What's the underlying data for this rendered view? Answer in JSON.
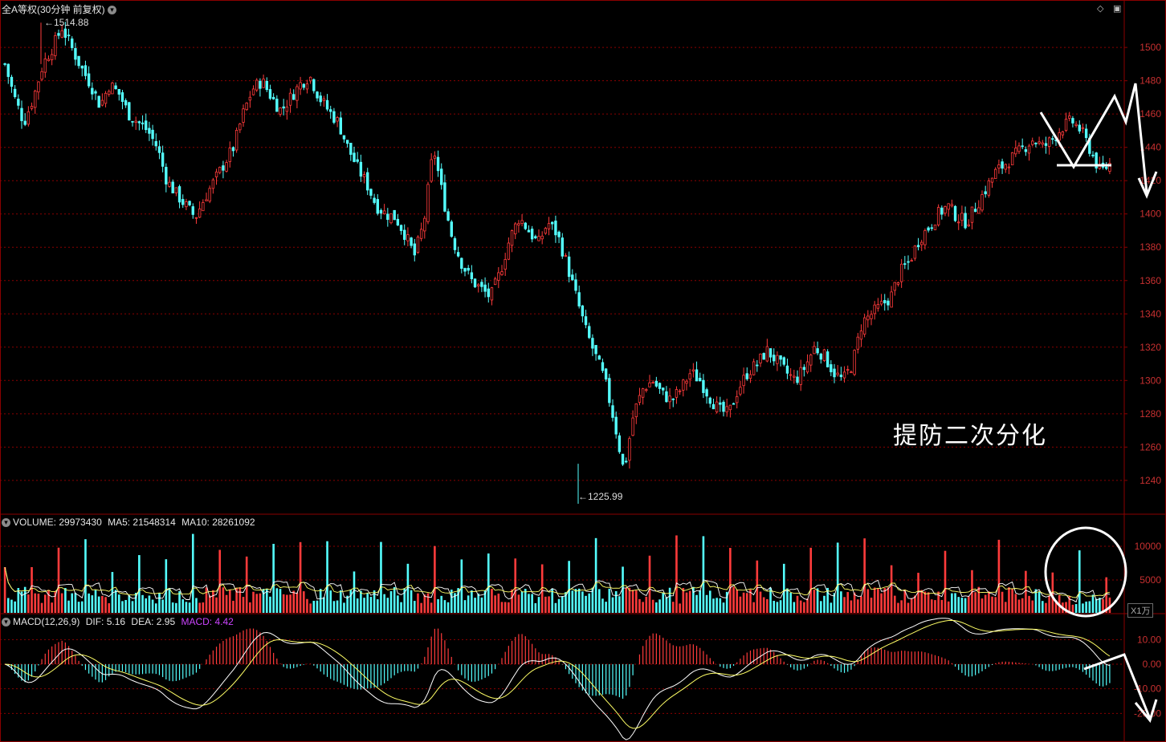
{
  "window": {
    "title": "全A等权(30分钟 前复权)",
    "dropdown_icon": "chevron-down-icon",
    "tools": [
      "diamond-icon",
      "square-icon"
    ]
  },
  "price": {
    "high_label": "1514.88",
    "low_label": "1225.99",
    "annotation": "提防二次分化"
  },
  "volume": {
    "label": "VOLUME: 29973430",
    "ma5": "MA5: 21548314",
    "ma10": "MA10: 28261092",
    "unit": "X1万"
  },
  "macd": {
    "label": "MACD(12,26,9)",
    "dif": "DIF: 5.16",
    "dea": "DEA: 2.95",
    "macd": "MACD: 4.42"
  },
  "colors": {
    "up": "#ff3b3b",
    "down": "#54ffff",
    "grid": "#8b0000",
    "axis_text": "#c73030",
    "ma_white": "#ffffff",
    "ma_yellow": "#ffff66",
    "macd_label": "#cc44ff"
  },
  "chart_data": [
    {
      "type": "candlestick",
      "title": "全A等权(30分钟 前复权)",
      "ylim": [
        1225,
        1515
      ],
      "yticks": [
        1240,
        1260,
        1280,
        1300,
        1320,
        1340,
        1360,
        1380,
        1400,
        1420,
        1440,
        1460,
        1480,
        1500
      ],
      "max": 1514.88,
      "min": 1225.99,
      "close_path": [
        1490,
        1470,
        1455,
        1470,
        1490,
        1500,
        1512,
        1500,
        1488,
        1478,
        1465,
        1478,
        1472,
        1460,
        1455,
        1450,
        1440,
        1420,
        1412,
        1405,
        1398,
        1410,
        1420,
        1430,
        1440,
        1460,
        1475,
        1480,
        1470,
        1462,
        1470,
        1478,
        1483,
        1470,
        1462,
        1455,
        1440,
        1428,
        1418,
        1405,
        1400,
        1398,
        1388,
        1375,
        1395,
        1440,
        1410,
        1385,
        1370,
        1360,
        1355,
        1350,
        1365,
        1385,
        1398,
        1390,
        1382,
        1395,
        1388,
        1370,
        1350,
        1330,
        1315,
        1300,
        1275,
        1245,
        1280,
        1295,
        1300,
        1292,
        1288,
        1295,
        1305,
        1300,
        1290,
        1282,
        1280,
        1295,
        1305,
        1310,
        1318,
        1312,
        1305,
        1300,
        1308,
        1320,
        1315,
        1305,
        1300,
        1310,
        1335,
        1340,
        1345,
        1350,
        1365,
        1372,
        1385,
        1392,
        1400,
        1405,
        1398,
        1395,
        1405,
        1415,
        1425,
        1430,
        1435,
        1440,
        1445,
        1440,
        1445,
        1452,
        1456,
        1450,
        1438,
        1425,
        1430
      ]
    },
    {
      "type": "bar",
      "title": "VOLUME",
      "unit": "X1万",
      "yticks": [
        5000,
        10000
      ],
      "ylim": [
        0,
        12500
      ],
      "volume": 29973430,
      "ma5": 21548314,
      "ma10": 28261092
    },
    {
      "type": "bar",
      "title": "MACD(12,26,9)",
      "yticks": [
        10,
        0,
        -10,
        -20
      ],
      "yticklabels": [
        "10.00",
        "0.00",
        "-10.00",
        "-20.00"
      ],
      "ylim": [
        -30,
        15
      ],
      "dif": 5.16,
      "dea": 2.95,
      "macd": 4.42
    }
  ]
}
